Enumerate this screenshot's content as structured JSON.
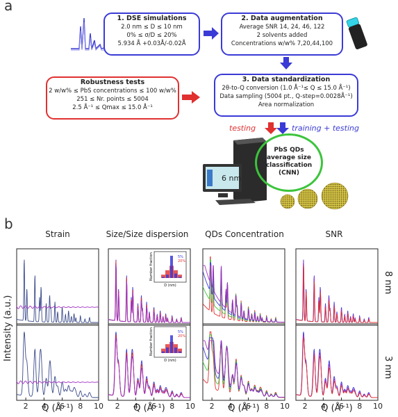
{
  "panel_a": {
    "letter": "a",
    "dse": {
      "title": "1. DSE simulations",
      "lines": [
        "2.0 nm ≤ D ≤ 10 nm",
        "0% ≤ σ/D ≤ 20%",
        "5.934 Å +0.03Å/-0.02Å"
      ]
    },
    "augment": {
      "title": "2. Data augmentation",
      "lines": [
        "Average SNR 14, 24, 46, 122",
        "2 solvents added",
        "Concentrations w/w% 7,20,44,100"
      ]
    },
    "robust": {
      "title": "Robustness tests",
      "lines": [
        "2 w/w% ≤ PbS concentrations ≤ 100 w/w%",
        "251 ≤ Nr. points ≤ 5004",
        "2.5 Å⁻¹ ≤ Qmax ≤ 15.0 Å⁻¹"
      ]
    },
    "standard": {
      "title": "3. Data standardization",
      "lines": [
        "2θ-to-Q conversion (1.0 Å⁻¹≤ Q ≤ 15.0 Å⁻¹)",
        "Data sampling (5004 pt., Q-step=0.0028Å⁻¹)",
        "Area normalization"
      ]
    },
    "testing": "testing",
    "training": "training + testing",
    "cnn": [
      "PbS QDs",
      "average size",
      "classification",
      "(CNN)"
    ],
    "monitor_label": "6 nm",
    "colors": {
      "blue": "#3a3ad6",
      "red": "#e03030",
      "green": "#3cc43c"
    }
  },
  "panel_b": {
    "letter": "b",
    "columns": [
      "Strain",
      "Size/Size dispersion",
      "QDs Concentration",
      "SNR"
    ],
    "rows": [
      "8 nm",
      "3 nm"
    ],
    "ylabel": "Intensity (a.u.)",
    "xlabel": "Q (Å⁻¹)",
    "xticks": [
      2,
      4,
      6,
      8,
      10
    ],
    "inset": {
      "ylabel": "Number fraction",
      "xlabel": "D (nm)",
      "legend": [
        "5%",
        "20%"
      ]
    }
  },
  "chart_data": {
    "type": "line",
    "x_range": [
      1,
      10
    ],
    "xticks": [
      2,
      4,
      6,
      8,
      10
    ],
    "peak_positions_Q": [
      1.83,
      2.12,
      3.0,
      3.52,
      3.68,
      4.24,
      4.62,
      4.74,
      5.2,
      5.5,
      6.0,
      6.36,
      6.7,
      7.0,
      7.3,
      7.5,
      8.0,
      8.5,
      9.0
    ]
  }
}
